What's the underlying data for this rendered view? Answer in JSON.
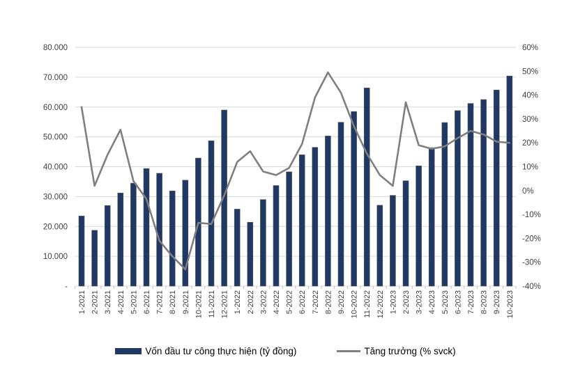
{
  "chart_data": {
    "type": "bar",
    "subtype": "combo-bar-line",
    "title": "",
    "categories": [
      "1-2021",
      "2-2021",
      "3-2021",
      "4-2021",
      "5-2021",
      "6-2021",
      "7-2021",
      "8-2021",
      "9-2021",
      "10-2021",
      "11-2021",
      "12-2021",
      "1-2022",
      "2-2022",
      "3-2022",
      "4-2022",
      "5-2022",
      "6-2022",
      "7-2022",
      "8-2022",
      "9-2022",
      "10-2022",
      "11-2022",
      "12-2022",
      "1-2023",
      "2-2023",
      "3-2023",
      "4-2023",
      "5-2023",
      "6-2023",
      "7-2023",
      "8-2023",
      "9-2023",
      "10-2023"
    ],
    "series": [
      {
        "name": "Vốn đầu tư công thực hiện (tỷ đồng)",
        "type": "bar",
        "axis": "left",
        "color": "#1f3864",
        "values": [
          23500,
          18700,
          27000,
          31200,
          34500,
          39400,
          37800,
          31900,
          35500,
          42900,
          48700,
          59000,
          25800,
          21400,
          29000,
          33700,
          38300,
          44000,
          46500,
          50300,
          54900,
          58500,
          66400,
          27100,
          30400,
          35300,
          40300,
          46400,
          54800,
          58800,
          61200,
          62500,
          65700,
          70400
        ]
      },
      {
        "name": "Tăng trưởng (% svck)",
        "type": "line",
        "axis": "right",
        "color": "#7f7f7f",
        "values": [
          35,
          2,
          15,
          25.5,
          4,
          -3.5,
          -21,
          -27.5,
          -33,
          -13.5,
          -14,
          -2,
          12,
          16.5,
          8,
          6.5,
          9.5,
          19.5,
          39,
          49.5,
          41,
          27,
          15.5,
          6.5,
          2,
          37,
          19,
          17.5,
          18.5,
          22,
          25,
          23.5,
          20.5,
          20
        ]
      }
    ],
    "left_axis": {
      "min": 0,
      "max": 80000,
      "step": 10000,
      "tick_labels": [
        "-",
        "10.000",
        "20.000",
        "30.000",
        "40.000",
        "50.000",
        "60.000",
        "70.000",
        "80.000"
      ]
    },
    "right_axis": {
      "min": -40,
      "max": 60,
      "step": 10,
      "tick_labels": [
        "-40%",
        "-30%",
        "-20%",
        "-10%",
        "0%",
        "10%",
        "20%",
        "30%",
        "40%",
        "50%",
        "60%"
      ]
    },
    "grid": true,
    "gridline_color": "#d9d9d9",
    "tick_color": "#bfbfbf",
    "axis_text_color": "#404040",
    "legend_position": "bottom"
  },
  "legend": {
    "bar_label": "Vốn đầu tư công thực hiện (tỷ đồng)",
    "line_label": "Tăng trưởng (% svck)"
  }
}
